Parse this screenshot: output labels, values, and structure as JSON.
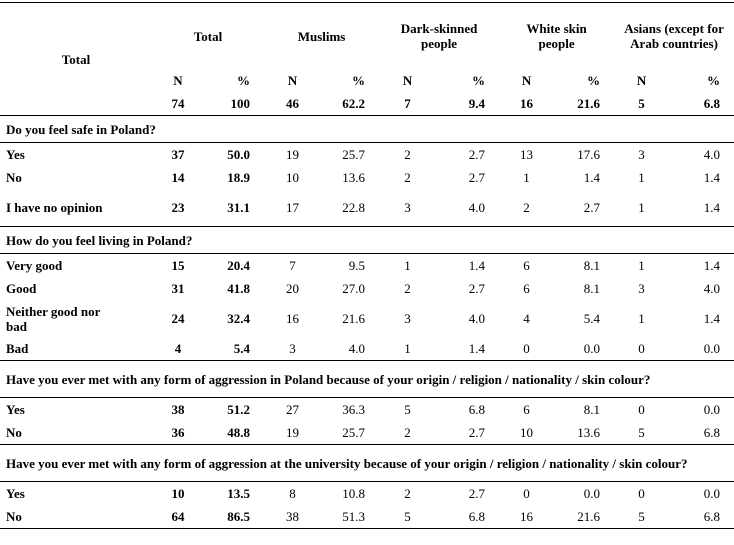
{
  "header": {
    "row_label": "Total",
    "groups": [
      "Total",
      "Muslims",
      "Dark-skinned people",
      "White skin people",
      "Asians (except for Arab countries)"
    ],
    "subcols": [
      "N",
      "%"
    ],
    "totals": [
      [
        "74",
        "100"
      ],
      [
        "46",
        "62.2"
      ],
      [
        "7",
        "9.4"
      ],
      [
        "16",
        "21.6"
      ],
      [
        "5",
        "6.8"
      ]
    ]
  },
  "sections": [
    {
      "question": "Do you feel safe in Poland?",
      "rows": [
        {
          "label": "Yes",
          "values": [
            "37",
            "50.0",
            "19",
            "25.7",
            "2",
            "2.7",
            "13",
            "17.6",
            "3",
            "4.0"
          ]
        },
        {
          "label": "No",
          "values": [
            "14",
            "18.9",
            "10",
            "13.6",
            "2",
            "2.7",
            "1",
            "1.4",
            "1",
            "1.4"
          ]
        },
        {
          "label": "I have no opinion",
          "values": [
            "23",
            "31.1",
            "17",
            "22.8",
            "3",
            "4.0",
            "2",
            "2.7",
            "1",
            "1.4"
          ]
        }
      ]
    },
    {
      "question": "How do you feel living in Poland?",
      "rows": [
        {
          "label": "Very good",
          "values": [
            "15",
            "20.4",
            "7",
            "9.5",
            "1",
            "1.4",
            "6",
            "8.1",
            "1",
            "1.4"
          ]
        },
        {
          "label": "Good",
          "values": [
            "31",
            "41.8",
            "20",
            "27.0",
            "2",
            "2.7",
            "6",
            "8.1",
            "3",
            "4.0"
          ]
        },
        {
          "label": "Neither good nor bad",
          "values": [
            "24",
            "32.4",
            "16",
            "21.6",
            "3",
            "4.0",
            "4",
            "5.4",
            "1",
            "1.4"
          ]
        },
        {
          "label": "Bad",
          "values": [
            "4",
            "5.4",
            "3",
            "4.0",
            "1",
            "1.4",
            "0",
            "0.0",
            "0",
            "0.0"
          ]
        }
      ]
    },
    {
      "question": "Have you ever met with any form of aggression in Poland because of your origin / religion / nationality / skin colour?",
      "rows": [
        {
          "label": "Yes",
          "values": [
            "38",
            "51.2",
            "27",
            "36.3",
            "5",
            "6.8",
            "6",
            "8.1",
            "0",
            "0.0"
          ]
        },
        {
          "label": "No",
          "values": [
            "36",
            "48.8",
            "19",
            "25.7",
            "2",
            "2.7",
            "10",
            "13.6",
            "5",
            "6.8"
          ]
        }
      ]
    },
    {
      "question": "Have you ever met with any form of aggression at the university because of your origin / religion / nationality / skin colour?",
      "rows": [
        {
          "label": "Yes",
          "values": [
            "10",
            "13.5",
            "8",
            "10.8",
            "2",
            "2.7",
            "0",
            "0.0",
            "0",
            "0.0"
          ]
        },
        {
          "label": "No",
          "values": [
            "64",
            "86.5",
            "38",
            "51.3",
            "5",
            "6.8",
            "16",
            "21.6",
            "5",
            "6.8"
          ]
        }
      ]
    }
  ]
}
